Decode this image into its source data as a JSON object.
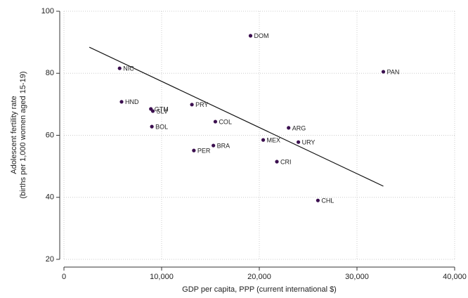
{
  "chart_data": {
    "type": "scatter",
    "xlabel": "GDP per capita, PPP (current international $)",
    "ylabel": [
      "Adolescent fertility rate",
      "(births per 1,000 women aged 15-19)"
    ],
    "categories": [
      "NIC",
      "HND",
      "GTM",
      "SLV",
      "BOL",
      "PRY",
      "COL",
      "PER",
      "BRA",
      "DOM",
      "MEX",
      "CRI",
      "ARG",
      "URY",
      "CHL",
      "PAN"
    ],
    "x": [
      5700,
      5900,
      8900,
      9100,
      9000,
      13100,
      15500,
      13300,
      15300,
      19100,
      20400,
      21800,
      23000,
      24000,
      26000,
      32700
    ],
    "values": [
      81.6,
      70.8,
      68.5,
      67.8,
      62.8,
      69.9,
      64.4,
      55.1,
      56.7,
      92.1,
      58.5,
      51.5,
      62.4,
      57.8,
      39.0,
      80.5
    ],
    "color": "#3b0f4f",
    "fit_line": {
      "x": [
        2600,
        32700
      ],
      "y": [
        88.4,
        43.6
      ]
    },
    "xlim": [
      0,
      40000
    ],
    "xticks": [
      0,
      {
        "value": 10000,
        "label": "10,000"
      },
      {
        "value": 20000,
        "label": "20,000"
      },
      {
        "value": 30000,
        "label": "30,000"
      },
      {
        "value": 40000,
        "label": "40,000"
      }
    ],
    "ylim": [
      20,
      100
    ],
    "yticks": [
      20,
      40,
      60,
      80,
      100
    ],
    "grid": true
  }
}
